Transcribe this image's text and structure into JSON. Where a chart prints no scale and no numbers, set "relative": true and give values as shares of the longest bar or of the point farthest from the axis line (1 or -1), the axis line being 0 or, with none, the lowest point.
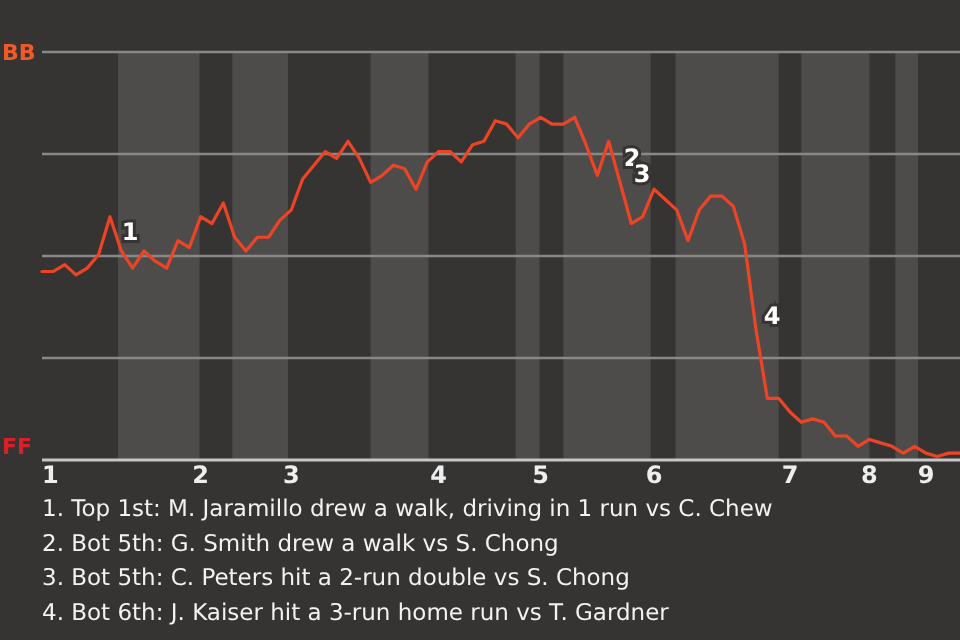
{
  "chart_data": {
    "type": "line",
    "color": "#ee4426",
    "relative": true,
    "categories": [
      "1",
      null,
      null,
      null,
      null,
      null,
      null,
      null,
      null,
      null,
      null,
      null,
      null,
      null,
      "2",
      null,
      null,
      null,
      null,
      null,
      null,
      null,
      "3",
      null,
      null,
      null,
      null,
      null,
      null,
      null,
      null,
      null,
      null,
      null,
      null,
      "4",
      null,
      null,
      null,
      null,
      null,
      null,
      null,
      null,
      "5",
      null,
      null,
      null,
      null,
      null,
      null,
      null,
      null,
      null,
      "6",
      null,
      null,
      null,
      null,
      null,
      null,
      null,
      null,
      null,
      null,
      null,
      "7",
      null,
      null,
      null,
      null,
      null,
      null,
      "8",
      null,
      null,
      null,
      null,
      "9",
      null,
      null,
      null
    ],
    "values": [
      0.55,
      0.55,
      0.57,
      0.54,
      0.56,
      0.6,
      0.71,
      0.61,
      0.56,
      0.61,
      0.58,
      0.56,
      0.64,
      0.62,
      0.71,
      0.69,
      0.75,
      0.65,
      0.61,
      0.65,
      0.65,
      0.7,
      0.73,
      0.82,
      0.86,
      0.9,
      0.88,
      0.93,
      0.88,
      0.81,
      0.83,
      0.86,
      0.85,
      0.79,
      0.87,
      0.9,
      0.9,
      0.87,
      0.92,
      0.93,
      0.99,
      0.98,
      0.94,
      0.98,
      1,
      0.98,
      0.98,
      1,
      0.92,
      0.83,
      0.93,
      0.81,
      0.69,
      0.71,
      0.79,
      0.76,
      0.73,
      0.64,
      0.73,
      0.77,
      0.77,
      0.74,
      0.63,
      0.38,
      0.18,
      0.18,
      0.14,
      0.11,
      0.12,
      0.11,
      0.07,
      0.07,
      0.04,
      0.06,
      0.05,
      0.04,
      0.02,
      0.04,
      0.02,
      0.01,
      0.02,
      0.02
    ],
    "grid": "y",
    "annotations": [
      "BB",
      "FF",
      "1",
      "2",
      "3",
      "4",
      "1. Top 1st: M. Jaramillo drew a walk, driving in 1 run vs C. Chew",
      "2. Bot 5th: G. Smith drew a walk vs S. Chong",
      "3. Bot 5th: C. Peters hit a 2-run double vs S. Chong",
      "4. Bot 6th: J. Kaiser hit a 3-run home run vs T. Gardner"
    ]
  }
}
